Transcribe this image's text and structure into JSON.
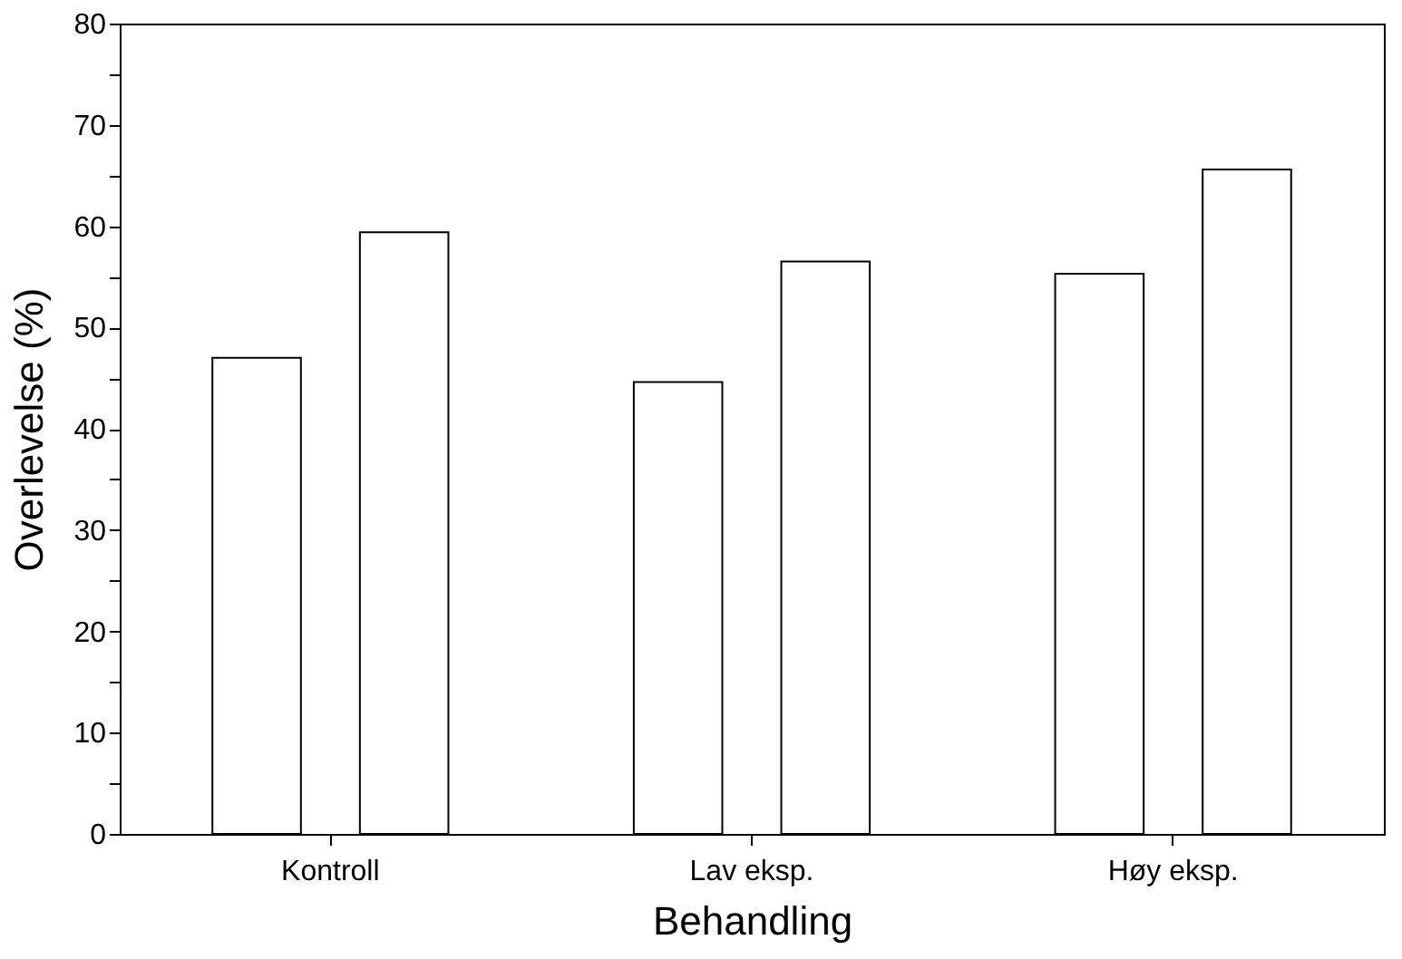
{
  "chart_data": {
    "type": "bar",
    "xlabel": "Behandling",
    "ylabel": "Overlevelse (%)",
    "categories": [
      "Kontroll",
      "Lav eksp.",
      "Høy eksp."
    ],
    "series": [
      {
        "color": "#ffffff",
        "values": [
          47,
          44.6,
          55.3
        ]
      },
      {
        "color": "#ffffff",
        "values": [
          59.4,
          56.5,
          65.6
        ]
      }
    ],
    "ylim": [
      0,
      80
    ],
    "yticks": [
      0,
      {
        "value": 5,
        "label": null
      },
      10,
      {
        "value": 15,
        "label": null
      },
      20,
      {
        "value": 25,
        "label": null
      },
      30,
      {
        "value": 35,
        "label": null
      },
      40,
      {
        "value": 45,
        "label": null
      },
      50,
      {
        "value": 55,
        "label": null
      },
      60,
      {
        "value": 65,
        "label": null
      },
      70,
      {
        "value": 75,
        "label": null
      },
      80
    ],
    "grid": false
  }
}
